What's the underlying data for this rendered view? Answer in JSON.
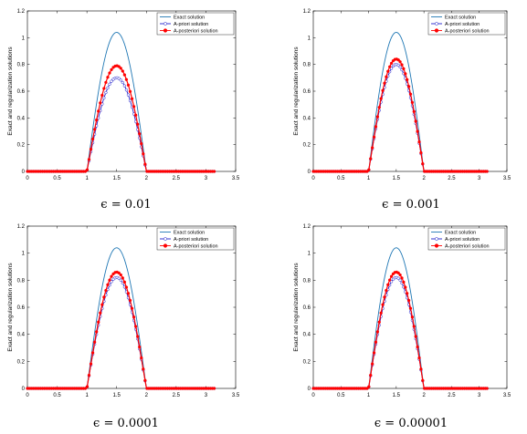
{
  "chart_data": [
    {
      "type": "line",
      "caption": "ϵ = 0.01",
      "ylabel": "Exact and regularization solutions",
      "xlim": [
        0,
        3.5
      ],
      "ylim": [
        0,
        1.2
      ],
      "xticks": [
        "0",
        "0.5",
        "1",
        "1.5",
        "2",
        "2.5",
        "3",
        "3.5"
      ],
      "yticks": [
        "0",
        "0.2",
        "0.4",
        "0.6",
        "0.8",
        "1",
        "1.2"
      ],
      "legend_position": "top-right",
      "grid": false,
      "domain": [
        0,
        3.14
      ],
      "support": [
        1,
        2
      ],
      "series": [
        {
          "name": "Exact solution",
          "peak": 1.04,
          "color": "#1f77b4",
          "marker": "none"
        },
        {
          "name": "A-priori solution",
          "peak": 0.7,
          "color": "#2020cc",
          "marker": "open-circle"
        },
        {
          "name": "A-posteriori solution",
          "peak": 0.79,
          "color": "#ff0000",
          "marker": "filled-circle"
        }
      ]
    },
    {
      "type": "line",
      "caption": "ϵ = 0.001",
      "ylabel": "Exact and regularization solutions",
      "xlim": [
        0,
        3.5
      ],
      "ylim": [
        0,
        1.2
      ],
      "xticks": [
        "0",
        "0.5",
        "1",
        "1.5",
        "2",
        "2.5",
        "3",
        "3.5"
      ],
      "yticks": [
        "0",
        "0.2",
        "0.4",
        "0.6",
        "0.8",
        "1",
        "1.2"
      ],
      "legend_position": "top-right",
      "grid": false,
      "domain": [
        0,
        3.14
      ],
      "support": [
        1,
        2
      ],
      "series": [
        {
          "name": "Exact solution",
          "peak": 1.04,
          "color": "#1f77b4",
          "marker": "none"
        },
        {
          "name": "A-priori solution",
          "peak": 0.8,
          "color": "#2020cc",
          "marker": "open-circle"
        },
        {
          "name": "A-posteriori solution",
          "peak": 0.84,
          "color": "#ff0000",
          "marker": "filled-circle"
        }
      ]
    },
    {
      "type": "line",
      "caption": "ϵ = 0.0001",
      "ylabel": "Exact and regularization solutions",
      "xlim": [
        0,
        3.5
      ],
      "ylim": [
        0,
        1.2
      ],
      "xticks": [
        "0",
        "0.5",
        "1",
        "1.5",
        "2",
        "2.5",
        "3",
        "3.5"
      ],
      "yticks": [
        "0",
        "0.2",
        "0.4",
        "0.6",
        "0.8",
        "1",
        "1.2"
      ],
      "legend_position": "top-right",
      "grid": false,
      "domain": [
        0,
        3.14
      ],
      "support": [
        1,
        2
      ],
      "series": [
        {
          "name": "Exact solution",
          "peak": 1.04,
          "color": "#1f77b4",
          "marker": "none"
        },
        {
          "name": "A-priori solution",
          "peak": 0.82,
          "color": "#2020cc",
          "marker": "open-circle"
        },
        {
          "name": "A-posteriori solution",
          "peak": 0.86,
          "color": "#ff0000",
          "marker": "filled-circle"
        }
      ]
    },
    {
      "type": "line",
      "caption": "ϵ = 0.00001",
      "ylabel": "Exact and regularization solutions",
      "xlim": [
        0,
        3.5
      ],
      "ylim": [
        0,
        1.2
      ],
      "xticks": [
        "0",
        "0.5",
        "1",
        "1.5",
        "2",
        "2.5",
        "3",
        "3.5"
      ],
      "yticks": [
        "0",
        "0.2",
        "0.4",
        "0.6",
        "0.8",
        "1",
        "1.2"
      ],
      "legend_position": "top-right",
      "grid": false,
      "domain": [
        0,
        3.14
      ],
      "support": [
        1,
        2
      ],
      "series": [
        {
          "name": "Exact solution",
          "peak": 1.04,
          "color": "#1f77b4",
          "marker": "none"
        },
        {
          "name": "A-priori solution",
          "peak": 0.82,
          "color": "#2020cc",
          "marker": "open-circle"
        },
        {
          "name": "A-posteriori solution",
          "peak": 0.86,
          "color": "#ff0000",
          "marker": "filled-circle"
        }
      ]
    }
  ]
}
